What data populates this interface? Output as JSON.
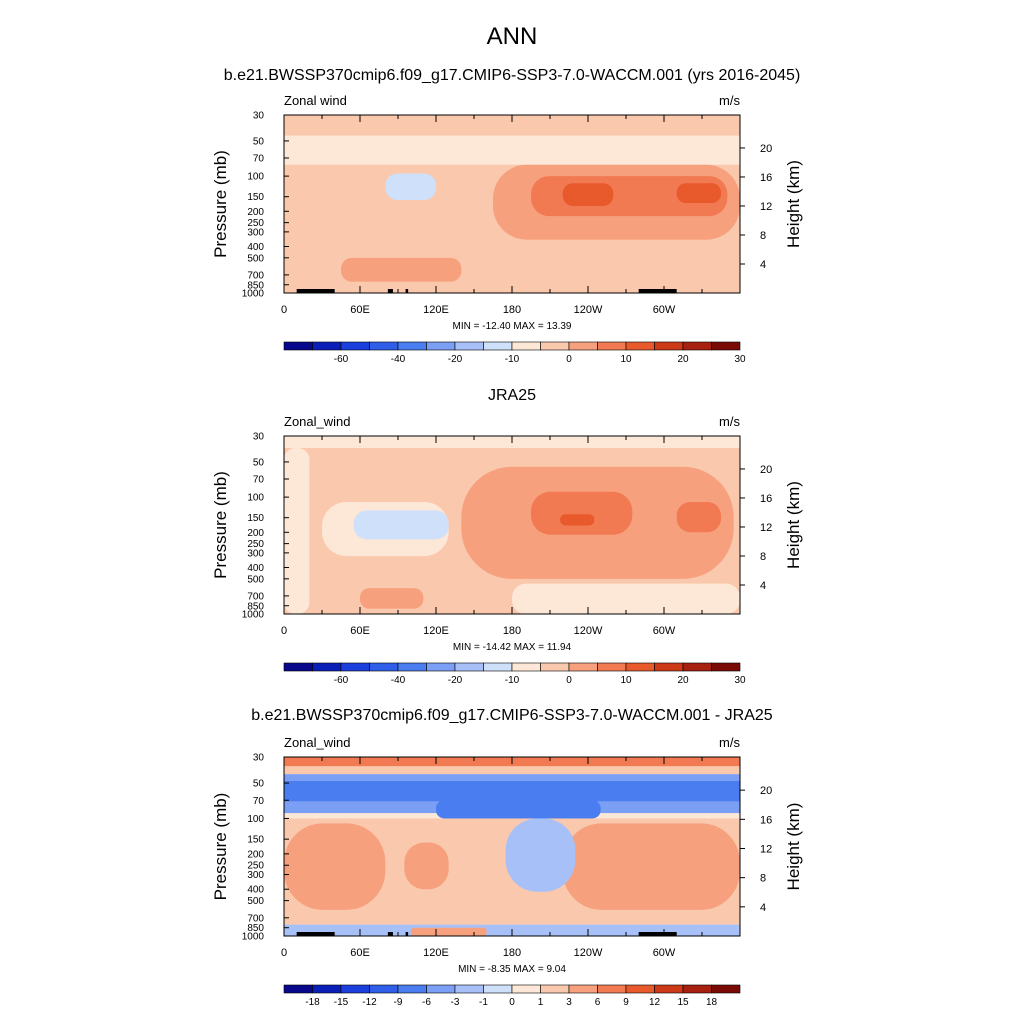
{
  "figure": {
    "title": "ANN"
  },
  "chart_data": [
    {
      "type": "heatmap",
      "title": "b.e21.BWSSP370cmip6.f09_g17.CMIP6-SSP3-7.0-WACCM.001 (yrs 2016-2045)",
      "left_label": "Zonal wind",
      "right_label": "m/s",
      "ylabel": "Pressure (mb)",
      "y2label": "Height (km)",
      "xticks": [
        "0",
        "60E",
        "120E",
        "180",
        "120W",
        "60W"
      ],
      "yticks": [
        "30",
        "50",
        "70",
        "100",
        "150",
        "200",
        "250",
        "300",
        "400",
        "500",
        "700",
        "850",
        "1000"
      ],
      "y2ticks": [
        "20",
        "16",
        "12",
        "8",
        "4"
      ],
      "stats": "MIN = -12.40  MAX =  13.39",
      "colorbar_labels": [
        "-60",
        "-40",
        "-20",
        "-10",
        "0",
        "10",
        "20",
        "30"
      ],
      "colorbar_levels": [
        -70,
        -60,
        -50,
        -40,
        -30,
        -20,
        -15,
        -10,
        -5,
        0,
        5,
        10,
        15,
        20,
        25,
        30,
        35
      ],
      "colors": [
        "#08088c",
        "#0a1fb8",
        "#1a3fdc",
        "#2f5fe8",
        "#4a7df0",
        "#7a9ff4",
        "#a8c0f8",
        "#cfe0fa",
        "#fde7d6",
        "#fac8ad",
        "#f7a07e",
        "#f27a52",
        "#e85a2c",
        "#cc3a18",
        "#a82010",
        "#7a0a05"
      ],
      "regions": [
        {
          "value": 2,
          "x0": 0,
          "x1": 360,
          "y0": 30,
          "y1": 45
        },
        {
          "value": -3,
          "x0": 0,
          "x1": 360,
          "y0": 45,
          "y1": 80
        },
        {
          "value": -8,
          "x0": 80,
          "x1": 120,
          "y0": 95,
          "y1": 160
        },
        {
          "value": 5,
          "x0": 165,
          "x1": 360,
          "y0": 80,
          "y1": 350
        },
        {
          "value": 12,
          "x0": 195,
          "x1": 350,
          "y0": 100,
          "y1": 220
        },
        {
          "value": 18,
          "x0": 220,
          "x1": 260,
          "y0": 115,
          "y1": 180
        },
        {
          "value": 18,
          "x0": 310,
          "x1": 345,
          "y0": 115,
          "y1": 170
        },
        {
          "value": 5,
          "x0": 45,
          "x1": 140,
          "y0": 500,
          "y1": 800
        }
      ],
      "terrain": [
        [
          10,
          40
        ],
        [
          82,
          86
        ],
        [
          96,
          98
        ],
        [
          280,
          310
        ]
      ]
    },
    {
      "type": "heatmap",
      "title": "JRA25",
      "left_label": "Zonal_wind",
      "right_label": "m/s",
      "ylabel": "Pressure (mb)",
      "y2label": "Height (km)",
      "xticks": [
        "0",
        "60E",
        "120E",
        "180",
        "120W",
        "60W"
      ],
      "yticks": [
        "30",
        "50",
        "70",
        "100",
        "150",
        "200",
        "250",
        "300",
        "400",
        "500",
        "700",
        "850",
        "1000"
      ],
      "y2ticks": [
        "20",
        "16",
        "12",
        "8",
        "4"
      ],
      "stats": "MIN = -14.42  MAX =  11.94",
      "colorbar_labels": [
        "-60",
        "-40",
        "-20",
        "-10",
        "0",
        "10",
        "20",
        "30"
      ],
      "colorbar_levels": [
        -70,
        -60,
        -50,
        -40,
        -30,
        -20,
        -15,
        -10,
        -5,
        0,
        5,
        10,
        15,
        20,
        25,
        30,
        35
      ],
      "colors": [
        "#08088c",
        "#0a1fb8",
        "#1a3fdc",
        "#2f5fe8",
        "#4a7df0",
        "#7a9ff4",
        "#a8c0f8",
        "#cfe0fa",
        "#fde7d6",
        "#fac8ad",
        "#f7a07e",
        "#f27a52",
        "#e85a2c",
        "#cc3a18",
        "#a82010",
        "#7a0a05"
      ],
      "regions": [
        {
          "value": -3,
          "x0": 0,
          "x1": 360,
          "y0": 30,
          "y1": 38
        },
        {
          "value": -3,
          "x0": 0,
          "x1": 20,
          "y0": 38,
          "y1": 1000
        },
        {
          "value": -3,
          "x0": 30,
          "x1": 130,
          "y0": 110,
          "y1": 320
        },
        {
          "value": -8,
          "x0": 55,
          "x1": 130,
          "y0": 130,
          "y1": 230
        },
        {
          "value": 5,
          "x0": 140,
          "x1": 355,
          "y0": 55,
          "y1": 500
        },
        {
          "value": 12,
          "x0": 195,
          "x1": 275,
          "y0": 90,
          "y1": 210
        },
        {
          "value": 12,
          "x0": 310,
          "x1": 345,
          "y0": 110,
          "y1": 200
        },
        {
          "value": 18,
          "x0": 218,
          "x1": 245,
          "y0": 140,
          "y1": 175
        },
        {
          "value": -3,
          "x0": 180,
          "x1": 360,
          "y0": 550,
          "y1": 1000
        },
        {
          "value": 5,
          "x0": 60,
          "x1": 110,
          "y0": 600,
          "y1": 900
        }
      ],
      "terrain": []
    },
    {
      "type": "heatmap",
      "title": "b.e21.BWSSP370cmip6.f09_g17.CMIP6-SSP3-7.0-WACCM.001 - JRA25",
      "left_label": "Zonal_wind",
      "right_label": "m/s",
      "ylabel": "Pressure (mb)",
      "y2label": "Height (km)",
      "xticks": [
        "0",
        "60E",
        "120E",
        "180",
        "120W",
        "60W"
      ],
      "yticks": [
        "30",
        "50",
        "70",
        "100",
        "150",
        "200",
        "250",
        "300",
        "400",
        "500",
        "700",
        "850",
        "1000"
      ],
      "y2ticks": [
        "20",
        "16",
        "12",
        "8",
        "4"
      ],
      "stats": "MIN =  -8.35  MAX =   9.04",
      "colorbar_labels": [
        "-18",
        "-15",
        "-12",
        "-9",
        "-6",
        "-3",
        "-1",
        "0",
        "1",
        "3",
        "6",
        "9",
        "12",
        "15",
        "18"
      ],
      "colorbar_levels": [
        -21,
        -18,
        -15,
        -12,
        -9,
        -6,
        -3,
        -1,
        0,
        1,
        3,
        6,
        9,
        12,
        15,
        18,
        21
      ],
      "colors": [
        "#08088c",
        "#0a1fb8",
        "#1a3fdc",
        "#2f5fe8",
        "#4a7df0",
        "#7a9ff4",
        "#a8c0f8",
        "#cfe0fa",
        "#fde7d6",
        "#fac8ad",
        "#f7a07e",
        "#f27a52",
        "#e85a2c",
        "#cc3a18",
        "#a82010",
        "#7a0a05"
      ],
      "regions": [
        {
          "value": 7,
          "x0": 0,
          "x1": 360,
          "y0": 30,
          "y1": 36
        },
        {
          "value": 2,
          "x0": 0,
          "x1": 360,
          "y0": 36,
          "y1": 42
        },
        {
          "value": -4,
          "x0": 0,
          "x1": 360,
          "y0": 42,
          "y1": 48
        },
        {
          "value": -8,
          "x0": 0,
          "x1": 360,
          "y0": 48,
          "y1": 72
        },
        {
          "value": -4,
          "x0": 0,
          "x1": 360,
          "y0": 72,
          "y1": 90
        },
        {
          "value": -8,
          "x0": 120,
          "x1": 250,
          "y0": 70,
          "y1": 100
        },
        {
          "value": 2,
          "x0": 0,
          "x1": 360,
          "y0": 100,
          "y1": 800
        },
        {
          "value": 4,
          "x0": 0,
          "x1": 80,
          "y0": 110,
          "y1": 600
        },
        {
          "value": 4,
          "x0": 95,
          "x1": 130,
          "y0": 160,
          "y1": 400
        },
        {
          "value": 4,
          "x0": 220,
          "x1": 360,
          "y0": 110,
          "y1": 600
        },
        {
          "value": -2,
          "x0": 175,
          "x1": 230,
          "y0": 100,
          "y1": 420
        },
        {
          "value": -2,
          "x0": 0,
          "x1": 360,
          "y0": 800,
          "y1": 1000
        },
        {
          "value": 4,
          "x0": 100,
          "x1": 160,
          "y0": 850,
          "y1": 1000
        }
      ],
      "terrain": [
        [
          10,
          40
        ],
        [
          82,
          86
        ],
        [
          96,
          98
        ],
        [
          280,
          310
        ]
      ]
    }
  ]
}
